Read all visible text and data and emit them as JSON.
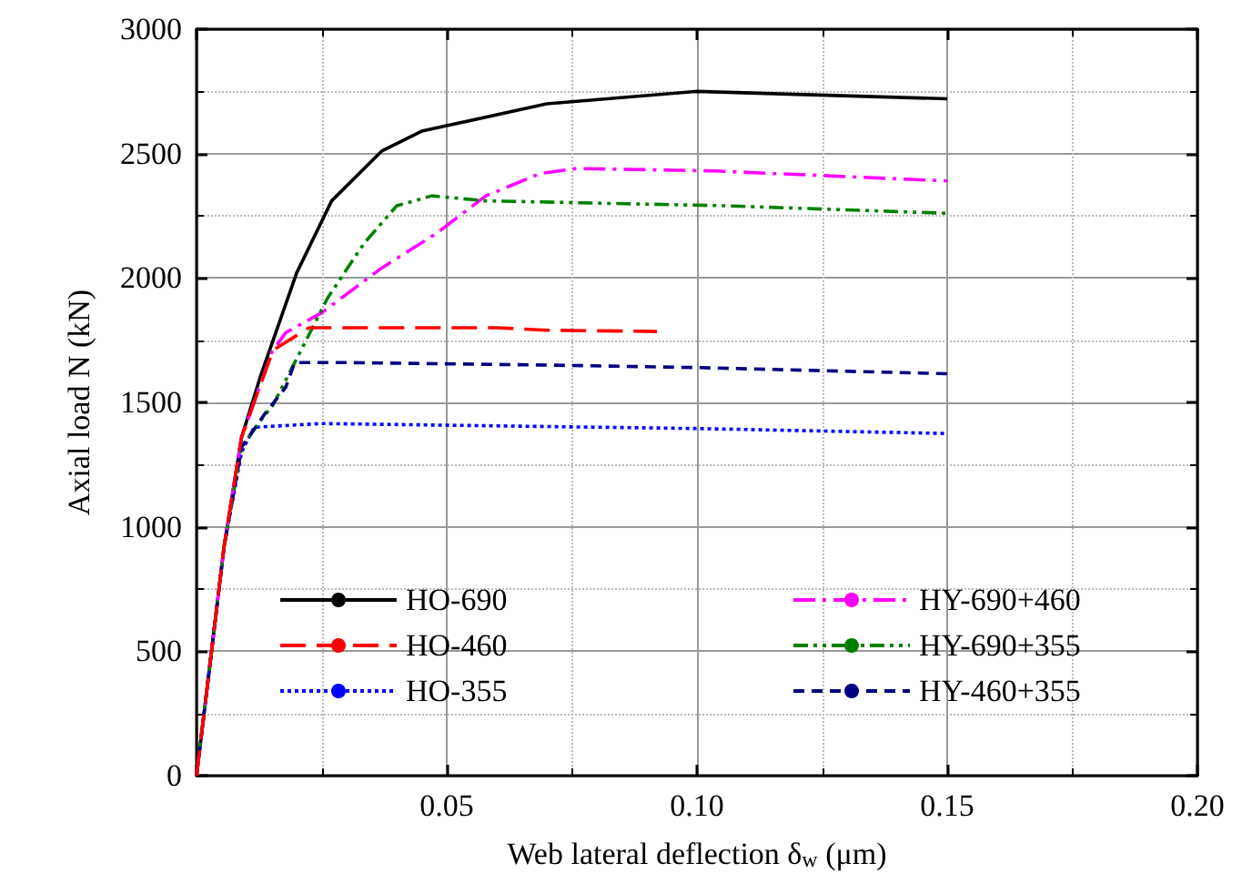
{
  "chart_data": {
    "type": "line",
    "xlabel": "Web lateral deflection δ$_{w}$ (μm)",
    "ylabel": "Axial load N (kN)",
    "xlim": [
      0,
      0.2
    ],
    "xticks": [
      {
        "value": 0,
        "label": null
      },
      0.05,
      {
        "value": 0.1,
        "label": "0.10"
      },
      0.15,
      {
        "value": 0.2,
        "label": "0.20"
      }
    ],
    "ylim": [
      0,
      3000
    ],
    "yticks": [
      0,
      500,
      1000,
      1500,
      2000,
      2500,
      3000
    ],
    "grid": true,
    "legend": "bottom",
    "marker": "none",
    "series": [
      {
        "name": "HO-690",
        "color": "#000000",
        "line_style": "solid",
        "x": [
          0,
          0.003,
          0.0055,
          0.009,
          0.0127,
          0.02,
          0.027,
          0.037,
          0.045,
          0.07,
          0.1,
          0.15
        ],
        "values": [
          0,
          500,
          920,
          1360,
          1600,
          2020,
          2310,
          2510,
          2590,
          2700,
          2750,
          2720
        ]
      },
      {
        "name": "HO-460",
        "color": "#ff0000",
        "line_style": "dashed",
        "x": [
          0,
          0.003,
          0.0055,
          0.009,
          0.0115,
          0.0153,
          0.0225,
          0.06,
          0.07,
          0.092
        ],
        "values": [
          0,
          500,
          920,
          1360,
          1500,
          1710,
          1800,
          1800,
          1790,
          1785
        ]
      },
      {
        "name": "HO-355",
        "color": "#0000ff",
        "line_style": "dotted",
        "x": [
          0,
          0.003,
          0.0055,
          0.009,
          0.0115,
          0.025,
          0.1,
          0.15
        ],
        "values": [
          0,
          500,
          920,
          1300,
          1400,
          1415,
          1395,
          1375
        ]
      },
      {
        "name": "HY-690+460",
        "color": "#ff00ff",
        "line_style": "dashed",
        "x": [
          0,
          0.003,
          0.0055,
          0.009,
          0.0115,
          0.015,
          0.0178,
          0.025,
          0.037,
          0.048,
          0.0578,
          0.0687,
          0.076,
          0.1036,
          0.15
        ],
        "values": [
          0,
          500,
          920,
          1360,
          1500,
          1700,
          1780,
          1860,
          2040,
          2180,
          2330,
          2420,
          2440,
          2430,
          2390
        ]
      },
      {
        "name": "HY-690+355",
        "color": "#008000",
        "line_style": "dashed",
        "x": [
          0,
          0.003,
          0.0055,
          0.009,
          0.0125,
          0.0153,
          0.0214,
          0.0262,
          0.0335,
          0.04,
          0.047,
          0.0578,
          0.106,
          0.15
        ],
        "values": [
          0,
          500,
          920,
          1320,
          1420,
          1490,
          1730,
          1920,
          2140,
          2290,
          2330,
          2310,
          2290,
          2260
        ]
      },
      {
        "name": "HY-460+355",
        "color": "#000080",
        "line_style": "dashed",
        "x": [
          0,
          0.003,
          0.0055,
          0.009,
          0.0125,
          0.0135,
          0.0178,
          0.0196,
          0.03,
          0.07,
          0.1,
          0.15
        ],
        "values": [
          0,
          500,
          920,
          1320,
          1420,
          1450,
          1560,
          1660,
          1660,
          1650,
          1640,
          1615
        ]
      }
    ]
  }
}
